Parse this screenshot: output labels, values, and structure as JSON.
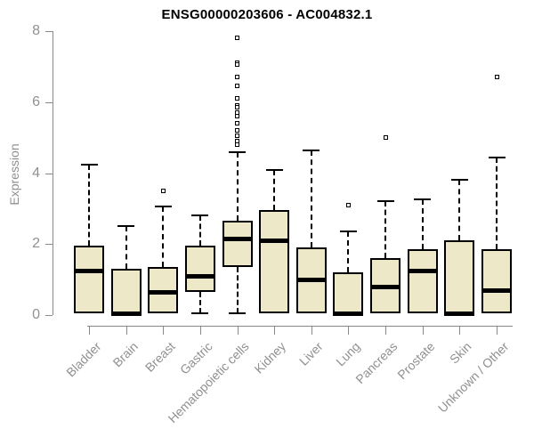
{
  "title": "ENSG00000203606 - AC004832.1",
  "colors": {
    "box_fill": "#EDE8C8",
    "box_border": "#000000",
    "median": "#000000",
    "axis": "#8A8A8A",
    "labels": "#909090",
    "title": "#000000",
    "background": "#FFFFFF"
  },
  "chart_data": {
    "type": "boxplot",
    "title": "ENSG00000203606 - AC004832.1",
    "xlabel": "",
    "ylabel": "Expression",
    "ylim": [
      0,
      8
    ],
    "yticks": [
      0,
      2,
      4,
      6,
      8
    ],
    "grid": false,
    "legend": null,
    "categories": [
      "Bladder",
      "Brain",
      "Breast",
      "Gastric",
      "Hematopoietic cells",
      "Kidney",
      "Liver",
      "Lung",
      "Pancreas",
      "Prostate",
      "Skin",
      "Unknown / Other"
    ],
    "series": [
      {
        "name": "Bladder",
        "low": 0.05,
        "q1": 0.05,
        "median": 1.25,
        "q3": 1.95,
        "high": 4.25,
        "outliers": []
      },
      {
        "name": "Brain",
        "low": 0.0,
        "q1": 0.0,
        "median": 0.05,
        "q3": 1.3,
        "high": 2.5,
        "outliers": []
      },
      {
        "name": "Breast",
        "low": 0.05,
        "q1": 0.05,
        "median": 0.65,
        "q3": 1.35,
        "high": 3.05,
        "outliers": [
          3.5
        ]
      },
      {
        "name": "Gastric",
        "low": 0.05,
        "q1": 0.65,
        "median": 1.1,
        "q3": 1.95,
        "high": 2.8,
        "outliers": []
      },
      {
        "name": "Hematopoietic cells",
        "low": 0.05,
        "q1": 1.35,
        "median": 2.15,
        "q3": 2.65,
        "high": 4.6,
        "outliers": [
          7.8,
          7.1,
          7.05,
          6.7,
          6.45,
          6.1,
          5.9,
          5.85,
          5.7,
          5.6,
          5.4,
          5.2,
          5.05,
          4.9,
          4.8
        ]
      },
      {
        "name": "Kidney",
        "low": 0.05,
        "q1": 0.05,
        "median": 2.1,
        "q3": 2.95,
        "high": 4.1,
        "outliers": []
      },
      {
        "name": "Liver",
        "low": 0.05,
        "q1": 0.05,
        "median": 1.0,
        "q3": 1.9,
        "high": 4.65,
        "outliers": []
      },
      {
        "name": "Lung",
        "low": 0.0,
        "q1": 0.0,
        "median": 0.05,
        "q3": 1.2,
        "high": 2.35,
        "outliers": [
          3.1
        ]
      },
      {
        "name": "Pancreas",
        "low": 0.05,
        "q1": 0.05,
        "median": 0.8,
        "q3": 1.6,
        "high": 3.2,
        "outliers": [
          5.0
        ]
      },
      {
        "name": "Prostate",
        "low": 0.05,
        "q1": 0.05,
        "median": 1.25,
        "q3": 1.85,
        "high": 3.25,
        "outliers": []
      },
      {
        "name": "Skin",
        "low": 0.0,
        "q1": 0.0,
        "median": 0.05,
        "q3": 2.1,
        "high": 3.8,
        "outliers": []
      },
      {
        "name": "Unknown / Other",
        "low": 0.05,
        "q1": 0.05,
        "median": 0.7,
        "q3": 1.85,
        "high": 4.45,
        "outliers": [
          6.7
        ]
      }
    ]
  }
}
